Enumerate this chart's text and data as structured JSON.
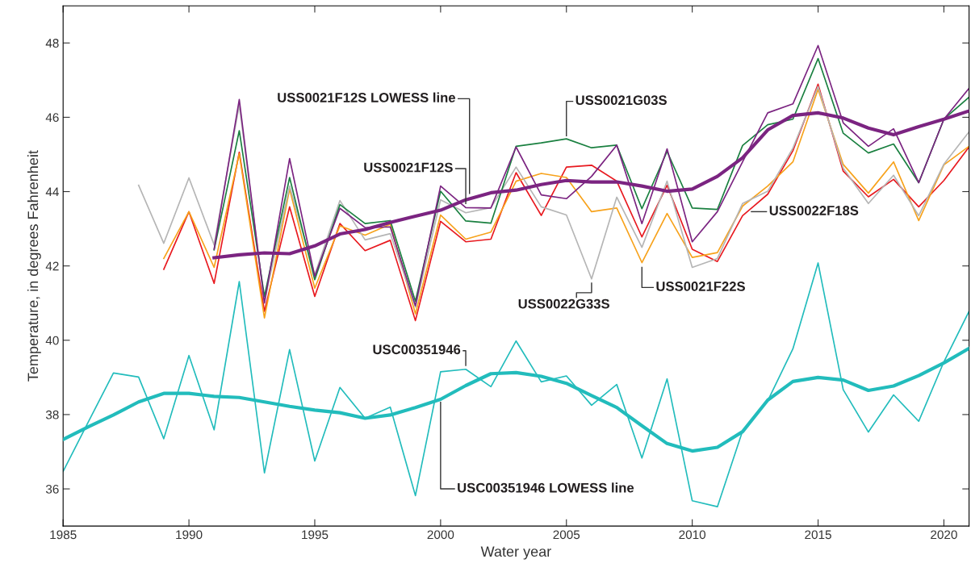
{
  "chart_data": {
    "type": "line",
    "xlabel": "Water year",
    "ylabel": "Temperature, in degrees Fahrenheit",
    "xlim": [
      1985,
      2021
    ],
    "xticks": [
      1985,
      1990,
      1995,
      2000,
      2005,
      2010,
      2015,
      2020
    ],
    "ylim": [
      35,
      49
    ],
    "yticks": [
      36,
      38,
      40,
      42,
      44,
      46,
      48
    ],
    "grid": false,
    "legend": false,
    "marker": "none",
    "line_style": "solid",
    "series": [
      {
        "name": "USS0022F18S",
        "color": "#e8191f",
        "x": [
          1989,
          1990,
          1991,
          1992,
          1993,
          1994,
          1995,
          1996,
          1997,
          1998,
          1999,
          2000,
          2001,
          2002,
          2003,
          2004,
          2005,
          2006,
          2007,
          2008,
          2009,
          2010,
          2011,
          2012,
          2013,
          2014,
          2015,
          2016,
          2017,
          2018,
          2019,
          2020,
          2021
        ],
        "values": [
          41.91,
          43.46,
          41.53,
          45.06,
          40.78,
          43.59,
          41.18,
          43.14,
          42.41,
          42.69,
          40.53,
          43.2,
          42.65,
          42.72,
          44.51,
          43.36,
          44.66,
          44.71,
          44.28,
          42.78,
          44.17,
          42.45,
          42.12,
          43.35,
          43.93,
          45.1,
          46.89,
          44.55,
          43.86,
          44.33,
          43.59,
          44.3,
          45.2
        ]
      },
      {
        "name": "USS0021F22S",
        "color": "#f7a21b",
        "x": [
          1989,
          1990,
          1991,
          1992,
          1993,
          1994,
          1995,
          1996,
          1997,
          1998,
          1999,
          2000,
          2001,
          2002,
          2003,
          2004,
          2005,
          2006,
          2007,
          2008,
          2009,
          2010,
          2011,
          2012,
          2013,
          2014,
          2015,
          2016,
          2017,
          2018,
          2019,
          2020,
          2021
        ],
        "values": [
          42.2,
          43.46,
          41.96,
          45.02,
          40.6,
          44.07,
          41.4,
          43.08,
          42.83,
          43.12,
          40.71,
          43.37,
          42.72,
          42.91,
          44.28,
          44.49,
          44.38,
          43.46,
          43.56,
          42.09,
          43.41,
          42.23,
          42.36,
          43.61,
          44.15,
          44.8,
          46.75,
          44.73,
          43.96,
          44.8,
          43.22,
          44.72,
          45.22
        ]
      },
      {
        "name": "USS0022G33S",
        "color": "#b5b5b5",
        "x": [
          1988,
          1989,
          1990,
          1991,
          1992,
          1993,
          1994,
          1995,
          1996,
          1997,
          1998,
          1999,
          2000,
          2001,
          2002,
          2003,
          2004,
          2005,
          2006,
          2007,
          2008,
          2009,
          2010,
          2011,
          2012,
          2013,
          2014,
          2015,
          2016,
          2017,
          2018,
          2019,
          2020,
          2021
        ],
        "values": [
          44.17,
          42.61,
          44.37,
          42.57,
          46.33,
          41.04,
          44.15,
          41.76,
          43.76,
          42.7,
          42.87,
          40.89,
          43.78,
          43.43,
          43.57,
          44.66,
          43.59,
          43.37,
          41.65,
          43.85,
          42.5,
          44.28,
          41.96,
          42.2,
          43.68,
          44.01,
          45.17,
          46.83,
          44.63,
          43.68,
          44.44,
          43.35,
          44.74,
          45.61
        ]
      },
      {
        "name": "USS0021G03S",
        "color": "#1a8040",
        "x": [
          1991,
          1992,
          1993,
          1994,
          1995,
          1996,
          1997,
          1998,
          1999,
          2000,
          2001,
          2002,
          2003,
          2004,
          2005,
          2006,
          2007,
          2008,
          2009,
          2010,
          2011,
          2012,
          2013,
          2014,
          2015,
          2016,
          2017,
          2018,
          2019,
          2020,
          2021
        ],
        "values": [
          42.43,
          45.64,
          41.18,
          44.38,
          41.63,
          43.65,
          43.14,
          43.22,
          41.05,
          44.01,
          43.21,
          43.15,
          45.22,
          45.31,
          45.42,
          45.18,
          45.25,
          43.54,
          45.08,
          43.56,
          43.52,
          45.24,
          45.8,
          45.95,
          47.58,
          45.57,
          45.04,
          45.28,
          44.24,
          45.95,
          46.54
        ]
      },
      {
        "name": "USS0021F12S",
        "color": "#7b2481",
        "x": [
          1991,
          1992,
          1993,
          1994,
          1995,
          1996,
          1997,
          1998,
          1999,
          2000,
          2001,
          2002,
          2003,
          2004,
          2005,
          2006,
          2007,
          2008,
          2009,
          2010,
          2011,
          2012,
          2013,
          2014,
          2015,
          2016,
          2017,
          2018,
          2019,
          2020,
          2021
        ],
        "values": [
          42.45,
          46.48,
          41.0,
          44.89,
          41.72,
          43.55,
          43.03,
          43.05,
          40.93,
          44.15,
          43.57,
          43.56,
          45.2,
          43.91,
          43.81,
          44.41,
          45.25,
          43.14,
          45.15,
          42.65,
          43.46,
          44.8,
          46.12,
          46.36,
          47.93,
          45.85,
          45.22,
          45.69,
          44.24,
          45.95,
          46.78
        ]
      },
      {
        "name": "USS0021F12S LOWESS line",
        "color": "#7b2481",
        "x": [
          1991,
          1992,
          1993,
          1994,
          1995,
          1996,
          1997,
          1998,
          1999,
          2000,
          2001,
          2002,
          2003,
          2004,
          2005,
          2006,
          2007,
          2008,
          2009,
          2010,
          2011,
          2012,
          2013,
          2014,
          2015,
          2016,
          2017,
          2018,
          2019,
          2020,
          2021
        ],
        "values": [
          42.22,
          42.3,
          42.35,
          42.33,
          42.54,
          42.86,
          42.98,
          43.17,
          43.34,
          43.5,
          43.78,
          43.97,
          44.04,
          44.19,
          44.3,
          44.26,
          44.26,
          44.15,
          44.01,
          44.07,
          44.41,
          44.91,
          45.66,
          46.05,
          46.12,
          45.98,
          45.71,
          45.53,
          45.75,
          45.95,
          46.17
        ]
      },
      {
        "name": "USC00351946",
        "color": "#22bcbc",
        "x": [
          1985,
          1986,
          1987,
          1988,
          1989,
          1990,
          1991,
          1992,
          1993,
          1994,
          1995,
          1996,
          1997,
          1998,
          1999,
          2000,
          2001,
          2002,
          2003,
          2004,
          2005,
          2006,
          2007,
          2008,
          2009,
          2010,
          2011,
          2012,
          2013,
          2014,
          2015,
          2016,
          2017,
          2018,
          2019,
          2020,
          2021
        ],
        "values": [
          36.47,
          37.8,
          39.12,
          39.01,
          37.35,
          39.59,
          37.59,
          41.58,
          36.43,
          39.75,
          36.75,
          38.73,
          37.9,
          38.2,
          35.82,
          39.15,
          39.22,
          38.75,
          39.98,
          38.88,
          39.04,
          38.25,
          38.81,
          36.83,
          38.96,
          35.68,
          35.52,
          37.56,
          38.37,
          39.77,
          42.08,
          38.67,
          37.53,
          38.53,
          37.82,
          39.42,
          40.78
        ]
      },
      {
        "name": "USC00351946 LOWESS line",
        "color": "#22bcbc",
        "x": [
          1985,
          1986,
          1987,
          1988,
          1989,
          1990,
          1991,
          1992,
          1993,
          1994,
          1995,
          1996,
          1997,
          1998,
          1999,
          2000,
          2001,
          2002,
          2003,
          2004,
          2005,
          2006,
          2007,
          2008,
          2009,
          2010,
          2011,
          2012,
          2013,
          2014,
          2015,
          2016,
          2017,
          2018,
          2019,
          2020,
          2021
        ],
        "values": [
          37.33,
          37.67,
          37.99,
          38.34,
          38.57,
          38.57,
          38.49,
          38.46,
          38.34,
          38.22,
          38.12,
          38.05,
          37.9,
          37.99,
          38.19,
          38.41,
          38.78,
          39.1,
          39.13,
          39.03,
          38.84,
          38.51,
          38.19,
          37.7,
          37.22,
          37.02,
          37.12,
          37.54,
          38.39,
          38.89,
          39.0,
          38.93,
          38.65,
          38.77,
          39.05,
          39.39,
          39.78
        ]
      }
    ]
  }
}
